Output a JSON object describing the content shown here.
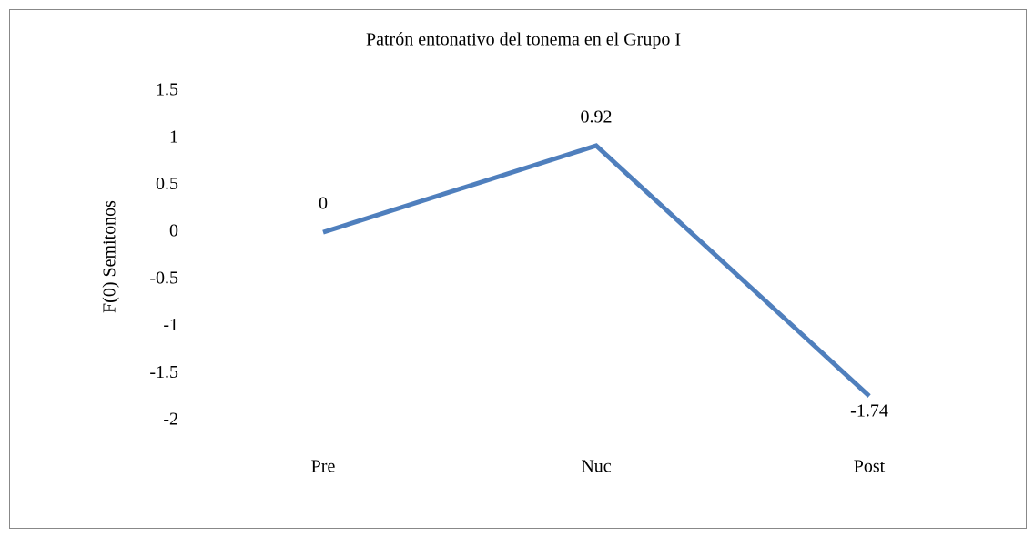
{
  "chart_data": {
    "type": "line",
    "title": "Patrón entonativo del tonema en el Grupo I",
    "y_label": "F(0) Semitonos",
    "categories": [
      "Pre",
      "Nuc",
      "Post"
    ],
    "values": [
      0,
      0.92,
      -1.74
    ],
    "color": "#4f7fbd",
    "ylim": [
      -2,
      1.5
    ],
    "yticks": [
      1.5,
      1,
      0.5,
      0,
      -0.5,
      -1,
      -1.5,
      -2
    ],
    "grid": false
  }
}
